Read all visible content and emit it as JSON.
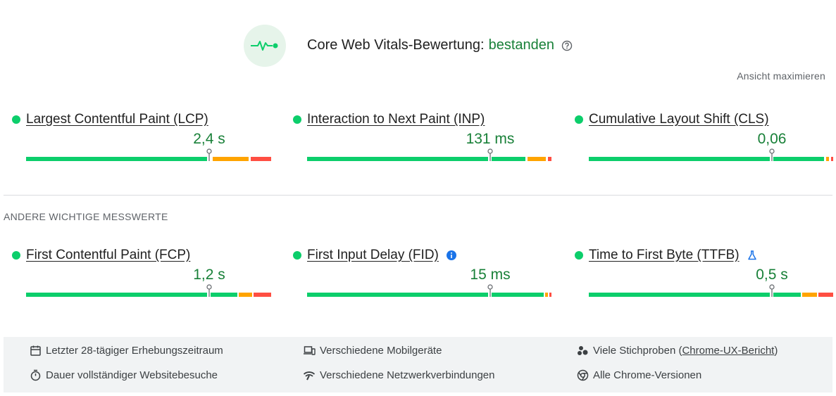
{
  "header": {
    "title_prefix": "Core Web Vitals-Bewertung:",
    "status": "bestanden",
    "expand_label": "Ansicht maximieren",
    "badge_icon": "vitals-pulse-icon",
    "help_icon": "help-circle-icon"
  },
  "colors": {
    "good": "#0cce6b",
    "average": "#ffa400",
    "poor": "#ff4e42",
    "status_text": "#188038"
  },
  "core_metrics": [
    {
      "name": "Largest Contentful Paint (LCP)",
      "value": "2,4 s"
    },
    {
      "name": "Interaction to Next Paint (INP)",
      "value": "131 ms"
    },
    {
      "name": "Cumulative Layout Shift (CLS)",
      "value": "0,06"
    }
  ],
  "other_section_title": "ANDERE WICHTIGE MESSWERTE",
  "other_metrics": [
    {
      "name": "First Contentful Paint (FCP)",
      "value": "1,2 s",
      "icon": ""
    },
    {
      "name": "First Input Delay (FID)",
      "value": "15 ms",
      "icon": "info-icon"
    },
    {
      "name": "Time to First Byte (TTFB)",
      "value": "0,5 s",
      "icon": "flask-icon"
    }
  ],
  "footer": {
    "period": "Letzter 28-tägiger Erhebungszeitraum",
    "devices": "Verschiedene Mobilgeräte",
    "samples_prefix": "Viele Stichproben (",
    "samples_link": "Chrome-UX-Bericht",
    "samples_suffix": ")",
    "duration": "Dauer vollständiger Websitebesuche",
    "network": "Verschiedene Netzwerkverbindungen",
    "versions": "Alle Chrome-Versionen"
  }
}
